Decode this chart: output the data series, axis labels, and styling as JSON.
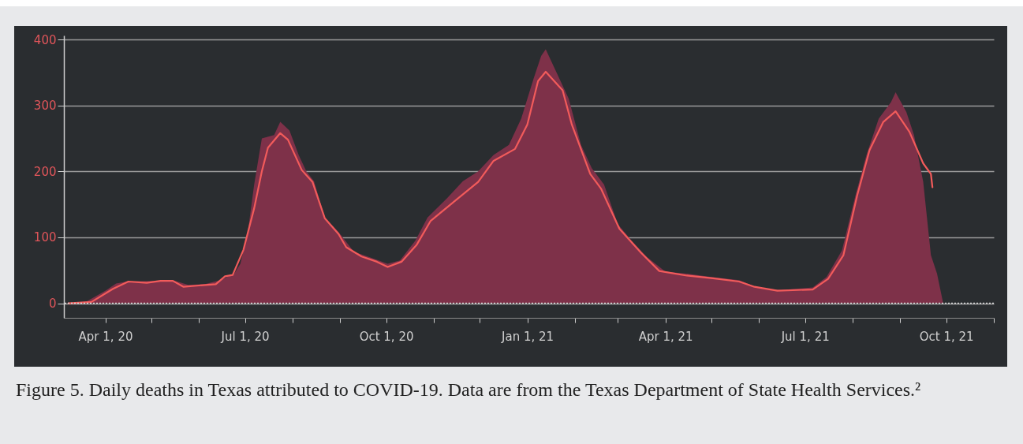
{
  "chart_data": {
    "type": "area",
    "xlim": [
      "2020-03-05",
      "2021-11-01"
    ],
    "xticks": [
      {
        "value": "2020-04-01",
        "label": "Apr 1, 20"
      },
      {
        "value": "2020-05-01",
        "label": null
      },
      {
        "value": "2020-06-01",
        "label": null
      },
      {
        "value": "2020-07-01",
        "label": "Jul 1, 20"
      },
      {
        "value": "2020-08-01",
        "label": null
      },
      {
        "value": "2020-09-01",
        "label": null
      },
      {
        "value": "2020-10-01",
        "label": "Oct 1, 20"
      },
      {
        "value": "2020-11-01",
        "label": null
      },
      {
        "value": "2020-12-01",
        "label": null
      },
      {
        "value": "2021-01-01",
        "label": "Jan 1, 21"
      },
      {
        "value": "2021-02-01",
        "label": null
      },
      {
        "value": "2021-03-01",
        "label": null
      },
      {
        "value": "2021-04-01",
        "label": "Apr 1, 21"
      },
      {
        "value": "2021-05-01",
        "label": null
      },
      {
        "value": "2021-06-01",
        "label": null
      },
      {
        "value": "2021-07-01",
        "label": "Jul 1, 21"
      },
      {
        "value": "2021-08-01",
        "label": null
      },
      {
        "value": "2021-09-01",
        "label": null
      },
      {
        "value": "2021-10-01",
        "label": "Oct 1, 21"
      },
      {
        "value": "2021-11-01",
        "label": null
      }
    ],
    "ylim": [
      -22,
      406
    ],
    "yticks": [
      0,
      100,
      200,
      300,
      400
    ],
    "grid": "y",
    "series": [
      {
        "color": "#7e3149",
        "x": [
          "2020-03-08",
          "2020-03-20",
          "2020-04-01",
          "2020-04-08",
          "2020-04-15",
          "2020-05-01",
          "2020-05-15",
          "2020-05-25",
          "2020-06-05",
          "2020-06-15",
          "2020-06-24",
          "2020-06-28",
          "2020-07-03",
          "2020-07-07",
          "2020-07-12",
          "2020-07-20",
          "2020-07-24",
          "2020-07-30",
          "2020-08-05",
          "2020-08-10",
          "2020-08-15",
          "2020-08-22",
          "2020-08-31",
          "2020-09-10",
          "2020-09-20",
          "2020-10-02",
          "2020-10-10",
          "2020-10-20",
          "2020-10-28",
          "2020-11-10",
          "2020-11-20",
          "2020-11-30",
          "2020-12-10",
          "2020-12-20",
          "2020-12-28",
          "2021-01-05",
          "2021-01-10",
          "2021-01-13",
          "2021-01-20",
          "2021-01-28",
          "2021-02-05",
          "2021-02-12",
          "2021-02-20",
          "2021-03-01",
          "2021-03-10",
          "2021-03-20",
          "2021-04-01",
          "2021-04-15",
          "2021-05-01",
          "2021-05-19",
          "2021-06-01",
          "2021-06-15",
          "2021-07-06",
          "2021-07-15",
          "2021-07-25",
          "2021-08-03",
          "2021-08-10",
          "2021-08-18",
          "2021-08-26",
          "2021-08-29",
          "2021-09-05",
          "2021-09-10",
          "2021-09-16",
          "2021-09-21",
          "2021-09-25",
          "2021-09-29"
        ],
        "values": [
          0,
          3,
          19,
          30,
          33,
          34,
          35,
          28,
          29,
          35,
          45,
          60,
          110,
          180,
          250,
          255,
          275,
          262,
          225,
          200,
          185,
          130,
          108,
          78,
          70,
          60,
          65,
          95,
          130,
          160,
          185,
          200,
          225,
          240,
          280,
          340,
          375,
          385,
          350,
          310,
          240,
          205,
          180,
          120,
          95,
          70,
          48,
          45,
          40,
          35,
          23,
          20,
          24,
          40,
          80,
          165,
          225,
          280,
          305,
          320,
          290,
          255,
          184,
          73,
          45,
          0
        ]
      },
      {
        "type": "line",
        "color": "#f25b5b",
        "x": [
          "2020-03-08",
          "2020-03-23",
          "2020-04-06",
          "2020-04-16",
          "2020-04-28",
          "2020-05-07",
          "2020-05-15",
          "2020-05-22",
          "2020-06-01",
          "2020-06-12",
          "2020-06-18",
          "2020-06-23",
          "2020-06-30",
          "2020-07-07",
          "2020-07-12",
          "2020-07-16",
          "2020-07-24",
          "2020-07-29",
          "2020-08-07",
          "2020-08-14",
          "2020-08-22",
          "2020-08-31",
          "2020-09-05",
          "2020-09-15",
          "2020-09-25",
          "2020-10-02",
          "2020-10-11",
          "2020-10-21",
          "2020-10-30",
          "2020-11-11",
          "2020-11-30",
          "2020-12-10",
          "2020-12-24",
          "2021-01-01",
          "2021-01-08",
          "2021-01-13",
          "2021-01-24",
          "2021-01-30",
          "2021-02-11",
          "2021-02-18",
          "2021-03-02",
          "2021-03-16",
          "2021-03-28",
          "2021-04-15",
          "2021-05-02",
          "2021-05-19",
          "2021-05-29",
          "2021-06-13",
          "2021-07-06",
          "2021-07-16",
          "2021-07-26",
          "2021-08-04",
          "2021-08-12",
          "2021-08-21",
          "2021-08-29",
          "2021-09-07",
          "2021-09-16",
          "2021-09-21",
          "2021-09-22"
        ],
        "values": [
          0,
          2,
          22,
          33,
          31,
          34,
          34,
          25,
          27,
          29,
          41,
          43,
          81,
          144,
          200,
          236,
          258,
          248,
          202,
          184,
          129,
          105,
          85,
          71,
          63,
          55,
          63,
          89,
          125,
          148,
          184,
          216,
          234,
          271,
          337,
          351,
          323,
          271,
          196,
          174,
          113,
          77,
          49,
          42,
          38,
          33,
          25,
          19,
          21,
          37,
          73,
          164,
          232,
          275,
          291,
          260,
          212,
          196,
          176
        ]
      }
    ],
    "ref_lines": [
      {
        "axis": "y",
        "value": 0,
        "color": "#d8d8d8",
        "line_style": "dotted"
      }
    ],
    "annotations": [
      "Figure 5.  Daily deaths in Texas attributed to COVID-19. Data are from the Texas Department of State Health Services.²"
    ]
  }
}
